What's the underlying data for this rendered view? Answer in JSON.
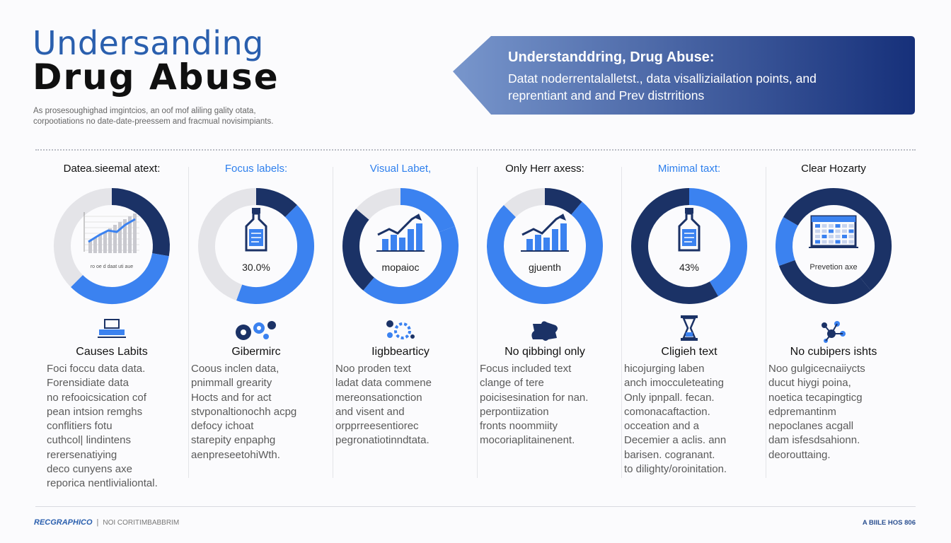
{
  "header": {
    "title_line1": "Undersanding",
    "title_line2": "Drug Abuse",
    "intro_line1": "As prosesoughighad imgintcios, an oof mof aliling gality otata,",
    "intro_line2": "corpootiations no date-date-preessem and fracmual novisimpiants."
  },
  "banner": {
    "title": "Understanddring, Drug Abuse:",
    "sub_line1": "Datat noderrentalalletst., data visalliziailation points, and",
    "sub_line2": "reprentiant and and Prev distrritions",
    "color_start": "#7896cc",
    "color_end": "#16307a"
  },
  "colors": {
    "navy": "#1b3266",
    "blue": "#3b82f0",
    "light": "#e4e4e8",
    "head_blue": "#2f80ed"
  },
  "columns": [
    {
      "heading": "Datea.sieemal atext:",
      "ring_label": "ro oe d daat uti aue",
      "icon": "bar-chart-icon",
      "small_icon": "laptop-icon",
      "sub_title": "Causes Labits",
      "body": [
        "Foci foccu data data.",
        "Forensidiate data",
        "no refooicsication cof",
        "pean intsion remghs",
        "conflitiers  fotu",
        "cuthcol| lindintens",
        "rerersenatiying",
        "deco cunyens  axe",
        "reporica nentlivialiontal."
      ]
    },
    {
      "heading": "Focus labels:",
      "ring_label": "30.0%",
      "icon": "bottle-icon",
      "small_icon": "gears-icon",
      "sub_title": "Gibermirc",
      "body": [
        "Coous inclen data,",
        "pnimmall grearity",
        "Hocts and for act",
        "stvponaltionochh acpg",
        "defocy ichoat",
        "starepity enpaphg",
        "aenpreseetohiWth."
      ]
    },
    {
      "heading": "Visual Labet,",
      "ring_label": "mopaioc",
      "icon": "growth-chart-icon",
      "small_icon": "molecule-icon",
      "sub_title": "Iigbbearticy",
      "body": [
        "Noo proden text",
        "ladat data commene",
        "mereonsationction",
        "and visent and",
        "orpprreesentiorec",
        "pegronatiotinndtata."
      ]
    },
    {
      "heading": "Only Herr axess:",
      "ring_label": "gjuenth",
      "icon": "growth-chart-icon",
      "small_icon": "puzzle-icon",
      "sub_title": "No qibbingl only",
      "body": [
        "Focus included text",
        "clange of tere",
        "poicisesination for nan.",
        "perpontiization",
        "fronts  noommiity",
        "mocoriaplitainenent."
      ]
    },
    {
      "heading": "Mimimal taxt:",
      "ring_label": "43%",
      "icon": "bottle-icon",
      "small_icon": "hourglass-icon",
      "sub_title": "Cligieh text",
      "body": [
        "hicojurging laben",
        "anch imocculeteating",
        "Only ipnpall. fecan.",
        "comonacaftaction.",
        "occeation and a",
        "Decemier a aclis. ann",
        "barisen. cogranant.",
        "to dilighty/oroinitation."
      ]
    },
    {
      "heading": "Clear Hozarty",
      "ring_label": "Prevetion axe",
      "icon": "calendar-grid-icon",
      "small_icon": "network-icon",
      "sub_title": "No cubipers ishts",
      "body": [
        "Noo gulgicecnaiiycts",
        "ducut hiygi poina,",
        "noetica tecapingticg",
        "edpremantinm",
        "nepoclanes acgall",
        "dam isfesdsahionn.",
        "deorouttaing."
      ]
    }
  ],
  "footer": {
    "brand": "RECGRAPHICO",
    "sep": "|",
    "left_text": "NOI CORITIMBABBRIM",
    "right_text": "A BIILE HOS 806"
  }
}
